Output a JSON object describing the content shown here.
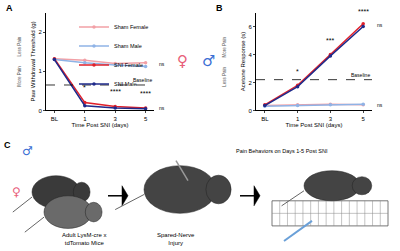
{
  "chart_data": [
    {
      "type": "line",
      "panel": "A",
      "x_label": "Time Post SNI (days)",
      "y_label": "Paw Withdrawal Threshold (g)",
      "categories": [
        "BL",
        "1",
        "3",
        "5"
      ],
      "series": [
        {
          "name": "Sham Female",
          "color": "#f2a0a6",
          "values": [
            1.32,
            1.28,
            1.2,
            1.22
          ]
        },
        {
          "name": "Sham Male",
          "color": "#8fb3e6",
          "values": [
            1.3,
            1.22,
            1.16,
            1.12
          ]
        },
        {
          "name": "SNI Female",
          "color": "#e0202a",
          "values": [
            1.32,
            0.2,
            0.1,
            0.06
          ]
        },
        {
          "name": "SNI Male",
          "color": "#1f2a8a",
          "values": [
            1.3,
            0.12,
            0.06,
            0.04
          ]
        }
      ],
      "ylim": [
        0,
        2.5
      ],
      "yticks": [
        0,
        1,
        2
      ],
      "legend": "top right",
      "marker": "circle",
      "baseline": {
        "value": 0.65,
        "label": "Baseline"
      },
      "pain_labels": {
        "top": "Less Pain",
        "bottom": "More Pain"
      },
      "annotations": [
        {
          "x": "1",
          "y": 0.45,
          "text": "*"
        },
        {
          "x": "3",
          "y": 0.35,
          "text": "****"
        },
        {
          "x": "5",
          "y": 0.3,
          "text": "****"
        }
      ],
      "ns_labels": [
        {
          "y": 1.18,
          "text": "ns"
        },
        {
          "y": 0.06,
          "text": "ns"
        }
      ]
    },
    {
      "type": "line",
      "panel": "B",
      "x_label": "Time Post SNI (days)",
      "y_label": "Acetone Response (s)",
      "categories": [
        "BL",
        "1",
        "3",
        "5"
      ],
      "series": [
        {
          "name": "Sham Female",
          "color": "#f2a0a6",
          "values": [
            0.35,
            0.4,
            0.45,
            0.4
          ]
        },
        {
          "name": "Sham Male",
          "color": "#8fb3e6",
          "values": [
            0.3,
            0.35,
            0.4,
            0.45
          ]
        },
        {
          "name": "SNI Female",
          "color": "#e0202a",
          "values": [
            0.4,
            1.8,
            4.0,
            6.2
          ]
        },
        {
          "name": "SNI Male",
          "color": "#1f2a8a",
          "values": [
            0.35,
            1.7,
            3.9,
            6.0
          ]
        }
      ],
      "ylim": [
        0,
        7
      ],
      "yticks": [
        0,
        2,
        4,
        6
      ],
      "marker": "circle",
      "baseline": {
        "value": 2.2,
        "label": "Baseline"
      },
      "pain_labels": {
        "top": "More Pain",
        "bottom": "Less Pain"
      },
      "annotations": [
        {
          "x": "1",
          "y": 2.4,
          "text": "*"
        },
        {
          "x": "3",
          "y": 4.6,
          "text": "***"
        },
        {
          "x": "5",
          "y": 6.7,
          "text": "****"
        }
      ],
      "ns_labels": [
        {
          "y": 6.1,
          "text": "ns"
        },
        {
          "y": 0.42,
          "text": "ns"
        }
      ]
    }
  ],
  "sex_symbols": [
    {
      "text": "♀",
      "color": "#e8607a"
    },
    {
      "text": "♂",
      "color": "#3b6fd4"
    }
  ],
  "panel_c": {
    "label": "C",
    "mice": [
      "Adult LysM-cre x",
      "tdTomato Mice"
    ],
    "surgery": [
      "Spared-Nerve",
      "Injury"
    ],
    "behavior": "Pain Behaviors on Days 1-5 Post SNI"
  }
}
